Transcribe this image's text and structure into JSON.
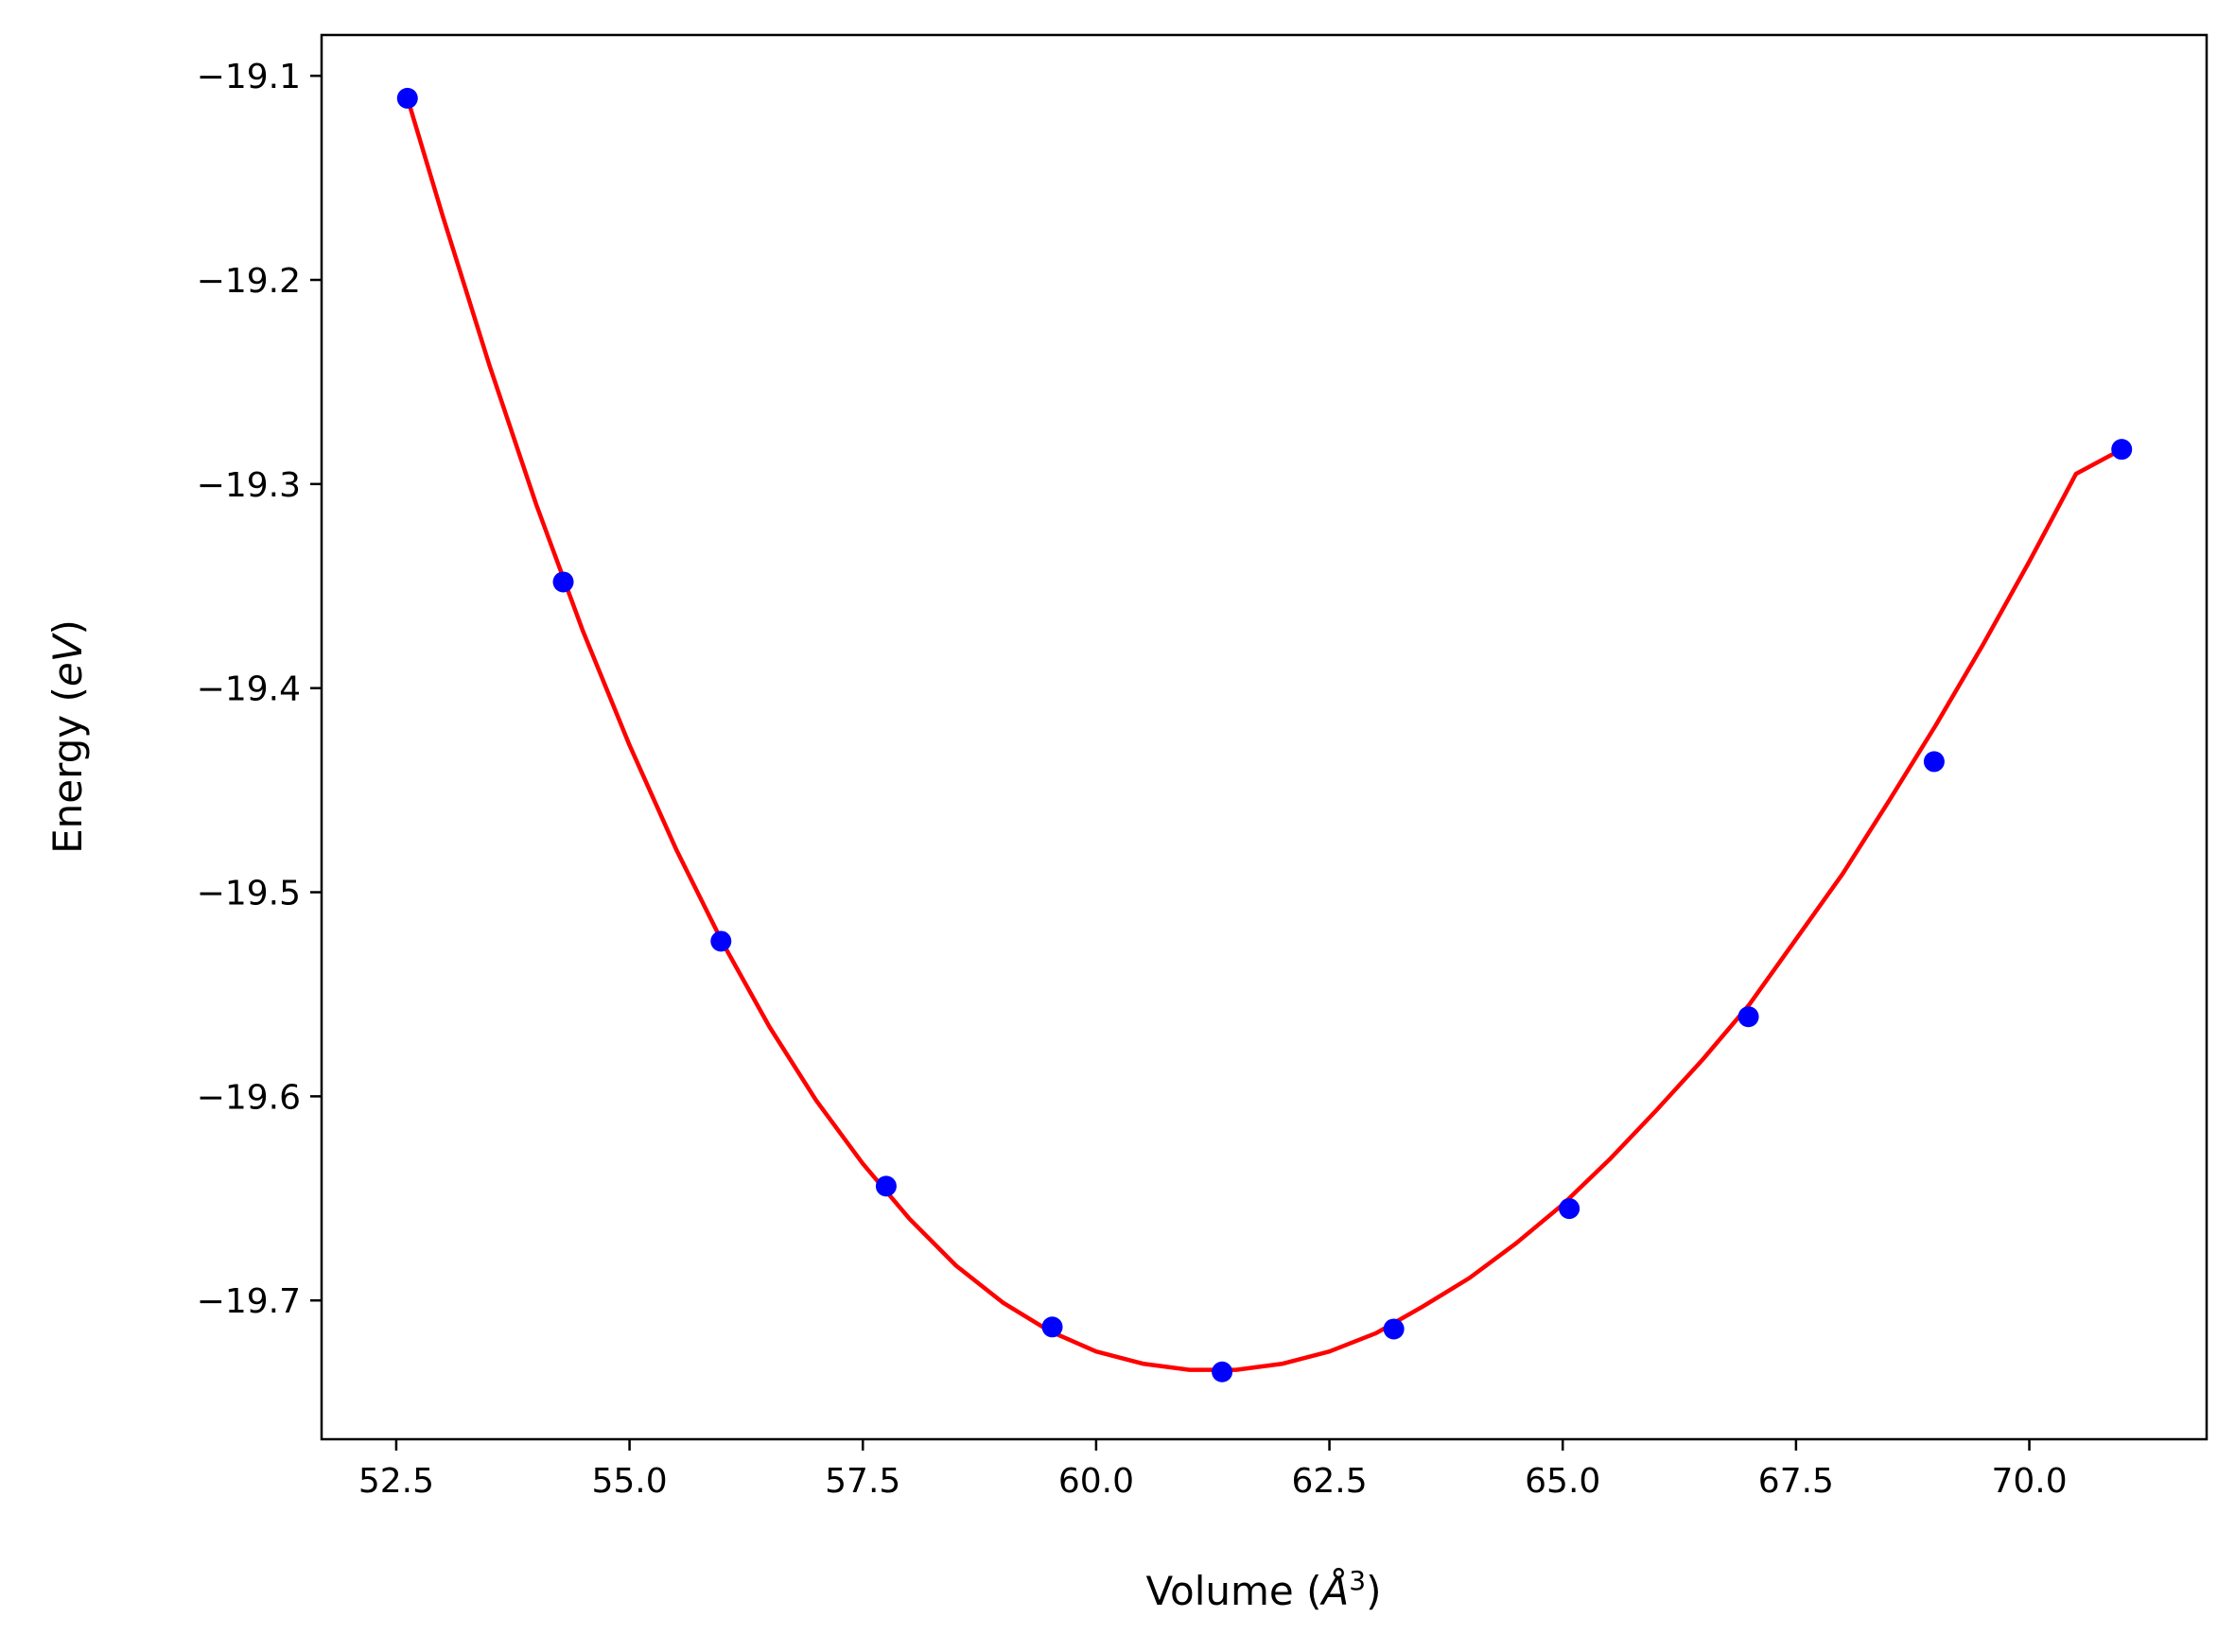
{
  "chart_data": {
    "type": "line",
    "title": "",
    "xlabel": "Volume (Å³)",
    "xlabel_parts": {
      "prefix": "Volume (",
      "symbol": "Å",
      "superscript": "3",
      "suffix": ")"
    },
    "ylabel": "Energy (eV)",
    "ylabel_parts": {
      "prefix": "Energy (",
      "italic": "eV",
      "suffix": ")"
    },
    "xlim": [
      51.7,
      71.9
    ],
    "ylim": [
      -19.768,
      -19.08
    ],
    "x_ticks": [
      52.5,
      55.0,
      57.5,
      60.0,
      62.5,
      65.0,
      67.5,
      70.0
    ],
    "x_tick_labels": [
      "52.5",
      "55.0",
      "57.5",
      "60.0",
      "62.5",
      "65.0",
      "67.5",
      "70.0"
    ],
    "y_ticks": [
      -19.1,
      -19.2,
      -19.3,
      -19.4,
      -19.5,
      -19.6,
      -19.7
    ],
    "y_tick_labels": [
      "−19.1",
      "−19.2",
      "−19.3",
      "−19.4",
      "−19.5",
      "−19.6",
      "−19.7"
    ],
    "grid": false,
    "series": [
      {
        "kind": "points",
        "color": "#0000ff",
        "x": [
          52.62,
          54.29,
          55.98,
          57.75,
          59.53,
          61.35,
          63.19,
          65.07,
          66.99,
          68.98,
          70.99
        ],
        "y": [
          -19.111,
          -19.348,
          -19.524,
          -19.644,
          -19.713,
          -19.735,
          -19.714,
          -19.655,
          -19.561,
          -19.436,
          -19.283
        ]
      },
      {
        "kind": "fit-line",
        "color": "#ff0000",
        "x": [
          52.62,
          53.0,
          53.5,
          54.0,
          54.5,
          55.0,
          55.5,
          56.0,
          56.5,
          57.0,
          57.5,
          58.0,
          58.5,
          59.0,
          59.5,
          60.0,
          60.5,
          61.0,
          61.5,
          62.0,
          62.5,
          63.0,
          63.5,
          64.0,
          64.5,
          65.0,
          65.5,
          66.0,
          66.5,
          67.0,
          67.5,
          68.0,
          68.5,
          69.0,
          69.5,
          70.0,
          70.5,
          70.99
        ],
        "y": [
          -19.111,
          -19.169,
          -19.242,
          -19.31,
          -19.372,
          -19.428,
          -19.479,
          -19.525,
          -19.566,
          -19.602,
          -19.633,
          -19.66,
          -19.683,
          -19.701,
          -19.715,
          -19.725,
          -19.731,
          -19.734,
          -19.734,
          -19.731,
          -19.725,
          -19.716,
          -19.703,
          -19.689,
          -19.672,
          -19.653,
          -19.631,
          -19.607,
          -19.582,
          -19.555,
          -19.523,
          -19.491,
          -19.455,
          -19.418,
          -19.379,
          -19.338,
          -19.295,
          -19.283
        ]
      }
    ]
  }
}
